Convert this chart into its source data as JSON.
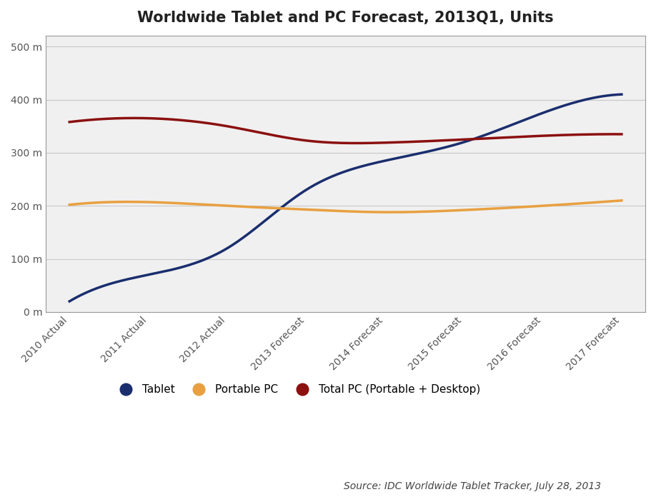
{
  "title": "Worldwide Tablet and PC Forecast, 2013Q1, Units",
  "source_text": "Source: IDC Worldwide Tablet Tracker, July 28, 2013",
  "x_labels": [
    "2010 Actual",
    "2011 Actual",
    "2012 Actual",
    "2013 Forecast",
    "2014 Forecast",
    "2015 Forecast",
    "2016 Forecast",
    "2017 Forecast"
  ],
  "tablet": [
    20,
    70,
    120,
    230,
    285,
    320,
    375,
    410
  ],
  "portable_pc": [
    202,
    207,
    200,
    193,
    188,
    192,
    200,
    210
  ],
  "total_pc": [
    358,
    365,
    350,
    323,
    319,
    325,
    332,
    335
  ],
  "tablet_color": "#1a2e6e",
  "portable_pc_color": "#e8a040",
  "total_pc_color": "#8b1010",
  "background_color": "#ffffff",
  "plot_bg_color": "#f0f0f0",
  "grid_color": "#c8c8c8",
  "border_color": "#999999",
  "ylim": [
    0,
    520
  ],
  "yticks": [
    0,
    100,
    200,
    300,
    400,
    500
  ],
  "ytick_labels": [
    "0 m",
    "100 m",
    "200 m",
    "300 m",
    "400 m",
    "500 m"
  ],
  "title_fontsize": 15,
  "legend_fontsize": 11,
  "tick_fontsize": 10,
  "source_fontsize": 10,
  "line_width": 2.5
}
